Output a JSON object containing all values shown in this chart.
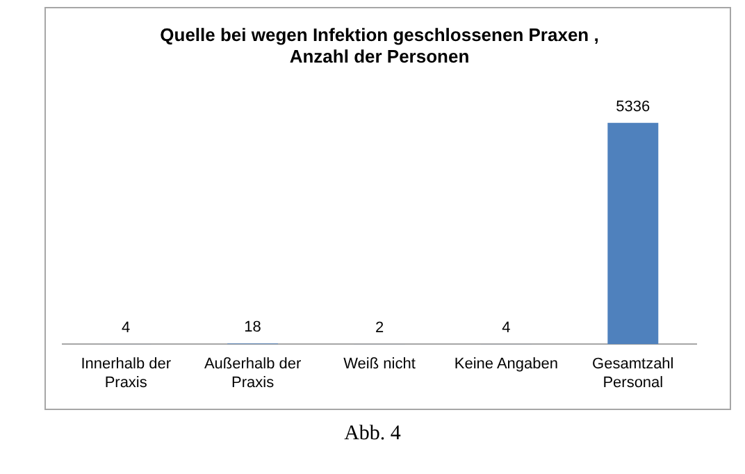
{
  "chart_data": {
    "type": "bar",
    "title": "Quelle bei wegen Infektion geschlossenen Praxen ,\nAnzahl der Personen",
    "categories": [
      "Innerhalb der Praxis",
      "Außerhalb der Praxis",
      "Weiß nicht",
      "Keine Angaben",
      "Gesamtzahl Personal"
    ],
    "values": [
      4,
      18,
      2,
      4,
      5336
    ],
    "color": "#4f81bd",
    "data_labels": true,
    "grid": false,
    "legend": false,
    "annotations": [
      "Abb. 4"
    ]
  }
}
